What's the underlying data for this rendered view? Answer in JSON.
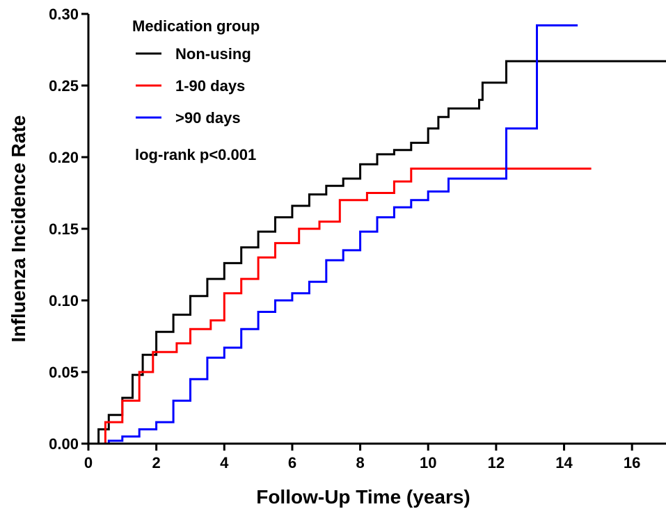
{
  "chart_data": {
    "type": "line",
    "step": true,
    "xlabel": "Follow-Up Time (years)",
    "ylabel": "Influenza Incidence Rate",
    "xlim": [
      0,
      17
    ],
    "ylim": [
      0,
      0.3
    ],
    "x_ticks": [
      0,
      2,
      4,
      6,
      8,
      10,
      12,
      14,
      16
    ],
    "x_tick_labels": [
      "0",
      "2",
      "4",
      "6",
      "8",
      "10",
      "12",
      "14",
      "16"
    ],
    "y_ticks": [
      0,
      0.05,
      0.1,
      0.15,
      0.2,
      0.25,
      0.3
    ],
    "y_tick_labels": [
      "0.00",
      "0.05",
      "0.10",
      "0.15",
      "0.20",
      "0.25",
      "0.30"
    ],
    "grid": false,
    "legend": {
      "title": "Medication group",
      "position": "top-left",
      "note": "log-rank p<0.001"
    },
    "series": [
      {
        "name": "Non-using",
        "color": "#000000",
        "points": [
          [
            0,
            0
          ],
          [
            0.3,
            0.01
          ],
          [
            0.6,
            0.02
          ],
          [
            1.0,
            0.032
          ],
          [
            1.3,
            0.048
          ],
          [
            1.6,
            0.062
          ],
          [
            2.0,
            0.078
          ],
          [
            2.5,
            0.09
          ],
          [
            3.0,
            0.103
          ],
          [
            3.5,
            0.115
          ],
          [
            4.0,
            0.126
          ],
          [
            4.5,
            0.137
          ],
          [
            5.0,
            0.148
          ],
          [
            5.5,
            0.158
          ],
          [
            6.0,
            0.166
          ],
          [
            6.5,
            0.174
          ],
          [
            7.0,
            0.18
          ],
          [
            7.5,
            0.185
          ],
          [
            8.0,
            0.195
          ],
          [
            8.5,
            0.202
          ],
          [
            9.0,
            0.205
          ],
          [
            9.5,
            0.21
          ],
          [
            10.0,
            0.22
          ],
          [
            10.3,
            0.228
          ],
          [
            10.6,
            0.234
          ],
          [
            11.5,
            0.24
          ],
          [
            11.6,
            0.252
          ],
          [
            12.3,
            0.267
          ],
          [
            17.0,
            0.267
          ]
        ]
      },
      {
        "name": "1-90 days",
        "color": "#ff0000",
        "points": [
          [
            0,
            0
          ],
          [
            0.5,
            0.015
          ],
          [
            1.0,
            0.03
          ],
          [
            1.5,
            0.05
          ],
          [
            1.9,
            0.064
          ],
          [
            2.6,
            0.07
          ],
          [
            3.0,
            0.08
          ],
          [
            3.6,
            0.086
          ],
          [
            4.0,
            0.105
          ],
          [
            4.5,
            0.115
          ],
          [
            5.0,
            0.13
          ],
          [
            5.5,
            0.14
          ],
          [
            6.0,
            0.14
          ],
          [
            6.2,
            0.15
          ],
          [
            6.8,
            0.155
          ],
          [
            7.4,
            0.17
          ],
          [
            8.2,
            0.175
          ],
          [
            9.0,
            0.183
          ],
          [
            9.5,
            0.192
          ],
          [
            14.8,
            0.192
          ]
        ]
      },
      {
        "name": ">90 days",
        "color": "#0000ff",
        "points": [
          [
            0,
            0
          ],
          [
            0.6,
            0.002
          ],
          [
            1.0,
            0.005
          ],
          [
            1.5,
            0.01
          ],
          [
            2.0,
            0.015
          ],
          [
            2.5,
            0.03
          ],
          [
            3.0,
            0.045
          ],
          [
            3.5,
            0.06
          ],
          [
            4.0,
            0.067
          ],
          [
            4.5,
            0.08
          ],
          [
            5.0,
            0.092
          ],
          [
            5.5,
            0.1
          ],
          [
            6.0,
            0.105
          ],
          [
            6.5,
            0.113
          ],
          [
            7.0,
            0.128
          ],
          [
            7.5,
            0.135
          ],
          [
            8.0,
            0.148
          ],
          [
            8.5,
            0.158
          ],
          [
            9.0,
            0.165
          ],
          [
            9.5,
            0.17
          ],
          [
            10.0,
            0.176
          ],
          [
            10.6,
            0.185
          ],
          [
            12.3,
            0.22
          ],
          [
            13.2,
            0.292
          ],
          [
            14.4,
            0.292
          ]
        ]
      }
    ]
  }
}
